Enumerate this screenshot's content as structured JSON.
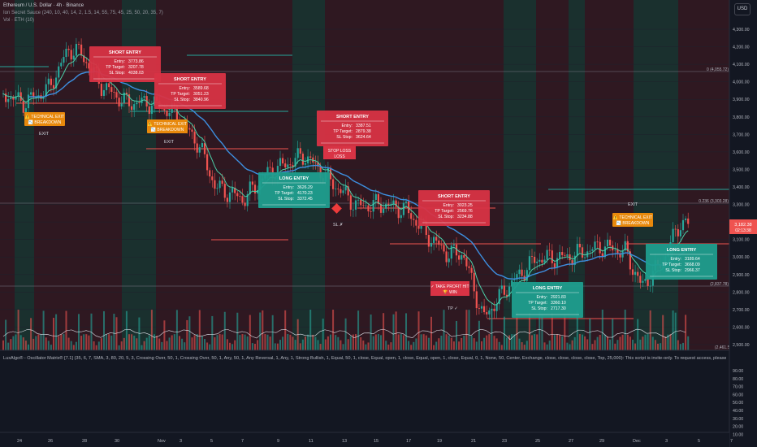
{
  "header": {
    "symbol": "Ethereum / U.S. Dollar · 4h · Binance",
    "indicator1": "Ion Secret Sauce (240, 10, 40, 14, 2, 1.5, 14, 55, 75, 45, 25, 50, 20, 35, 7)",
    "indicator2": "Vol · ETH (10)"
  },
  "currency_button": "USD",
  "oscillator_header": "LuxAlgo® - Oscillator Matrix® [7.1] (35, 6, 7, SMA, 3, 80, 20, 5, 3, Crossing Over, 50, 1, Crossing Over, 50, 1, Any, 50, 1, Any Reversal, 1, Any, 1, Strong Bullish, 1, Equal, 50, 1, close, Equal, open, 1, close, Equal, open, 1, close, Equal, 0, 1, None, 50, Center, Exchange, close, close, close, close, Top, 25,000): This script is invite-only. To request access, please contact its author.",
  "price_axis": {
    "ticks": [
      "4,300.00",
      "4,200.00",
      "4,100.00",
      "4,000.00",
      "3,900.00",
      "3,800.00",
      "3,700.00",
      "3,600.00",
      "3,500.00",
      "3,400.00",
      "3,300.00",
      "3,200.00",
      "3,100.00",
      "3,000.00",
      "2,900.00",
      "2,800.00",
      "2,700.00",
      "2,600.00",
      "2,500.00"
    ],
    "current_price": "3,182.38",
    "countdown": "02:13:38",
    "fib_levels": [
      {
        "label": "0 (4,055.72)"
      },
      {
        "label": "0.236 (3,303.28)"
      },
      {
        "label": "(2,837.78)"
      }
    ],
    "bottom_label": "(2,461.56)"
  },
  "osc_axis": {
    "ticks": [
      "90.00",
      "80.00",
      "70.00",
      "60.00",
      "50.00",
      "40.00",
      "30.00",
      "20.00",
      "10.00"
    ]
  },
  "time_axis": {
    "ticks": [
      "24",
      "26",
      "28",
      "30",
      "Nov",
      "3",
      "5",
      "7",
      "9",
      "11",
      "13",
      "15",
      "17",
      "19",
      "21",
      "23",
      "25",
      "27",
      "29",
      "Dec",
      "3",
      "5",
      "7"
    ]
  },
  "trade_boxes": [
    {
      "type": "short",
      "title": "SHORT ENTRY",
      "entry": "3773.86",
      "tp": "3207.78",
      "sl": "4038.03"
    },
    {
      "type": "short",
      "title": "SHORT ENTRY",
      "entry": "3589.68",
      "tp": "3051.23",
      "sl": "3840.96"
    },
    {
      "type": "short",
      "title": "SHORT ENTRY",
      "entry": "3387.51",
      "tp": "2879.38",
      "sl": "3624.64"
    },
    {
      "type": "long",
      "title": "LONG ENTRY",
      "entry": "3626.29",
      "tp": "4170.23",
      "sl": "3372.45"
    },
    {
      "type": "short",
      "title": "SHORT ENTRY",
      "entry": "3023.25",
      "tp": "2569.76",
      "sl": "3234.88"
    },
    {
      "type": "long",
      "title": "LONG ENTRY",
      "entry": "2921.83",
      "tp": "3360.10",
      "sl": "2717.30"
    },
    {
      "type": "long",
      "title": "LONG ENTRY",
      "entry": "3189.64",
      "tp": "3668.09",
      "sl": "2966.37"
    }
  ],
  "field_labels": {
    "entry": "Entry:",
    "tp": "TP Target:",
    "sl": "SL Stop:"
  },
  "tech_exits": [
    {
      "line1": "⚠️ TECHNICAL EXIT",
      "line2": "📉 BREAKDOWN"
    },
    {
      "line1": "⚠️ TECHNICAL EXIT",
      "line2": "📉 BREAKDOWN"
    },
    {
      "line1": "⚠️ TECHNICAL EXIT",
      "line2": "📉 BREAKDOWN"
    }
  ],
  "loss_label": {
    "line1": "STOP LOSS",
    "line2": "LOSS"
  },
  "tp_label": {
    "line1": "✓ TAKE PROFIT HIT",
    "line2": "🏆 WIN"
  },
  "small_texts": {
    "exit": "EXIT",
    "sl_x": "SL ✗",
    "tp_check": "TP ✓"
  },
  "colors": {
    "background": "#131722",
    "bear_zone": "#3a1a22",
    "bull_zone": "#1c3330",
    "up_candle": "#26a69a",
    "down_candle": "#ef5350",
    "short_box": "#d83345",
    "long_box": "#1f9e8e",
    "exit_box": "#e8890c",
    "ema_fast": "#4ccfa8",
    "ema_slow": "#3d8fe0"
  }
}
